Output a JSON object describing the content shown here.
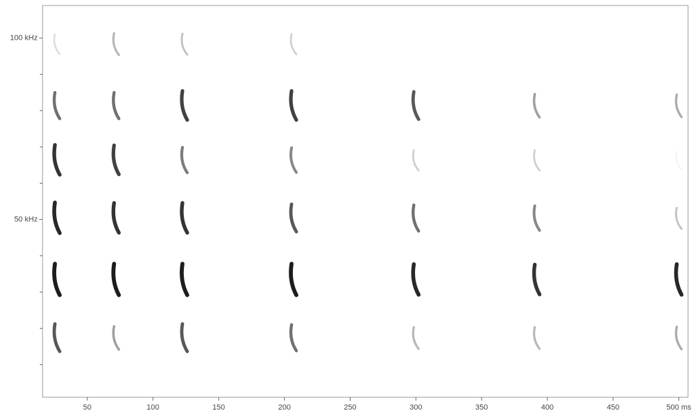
{
  "chart_data": {
    "type": "spectrogram",
    "x": [
      27,
      72,
      124,
      207,
      300,
      392,
      500
    ],
    "harmonics": [
      17,
      33,
      50,
      66,
      81,
      98
    ],
    "intensity": [
      [
        0.7,
        0.95,
        0.9,
        0.85,
        0.6,
        0.15
      ],
      [
        0.4,
        0.95,
        0.85,
        0.8,
        0.6,
        0.3
      ],
      [
        0.7,
        0.95,
        0.85,
        0.55,
        0.8,
        0.25
      ],
      [
        0.6,
        0.95,
        0.7,
        0.5,
        0.8,
        0.2
      ],
      [
        0.3,
        0.9,
        0.6,
        0.2,
        0.7,
        0
      ],
      [
        0.3,
        0.85,
        0.5,
        0.2,
        0.4,
        0
      ],
      [
        0.35,
        0.9,
        0.25,
        0.05,
        0.35,
        0
      ]
    ],
    "color": "#111111",
    "xlim": [
      16,
      507
    ],
    "ylim": [
      1,
      109
    ],
    "xticks": [
      50,
      100,
      150,
      200,
      250,
      300,
      350,
      400,
      450,
      {
        "value": 500,
        "label": "500 ms"
      }
    ],
    "yticks": [
      {
        "value": 50,
        "label": "50 kHz"
      },
      {
        "value": 100,
        "label": "100 kHz"
      }
    ],
    "yminor_ticks": [
      10,
      20,
      30,
      40,
      60,
      70,
      80,
      90
    ]
  }
}
